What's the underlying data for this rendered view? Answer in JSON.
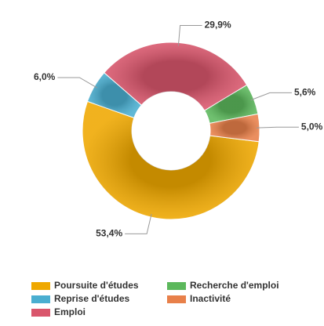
{
  "chart_data": {
    "type": "donut",
    "categories": [
      "Poursuite d'études",
      "Reprise d'études",
      "Emploi",
      "Recherche d'emploi",
      "Inactivité"
    ],
    "values": [
      53.4,
      6.0,
      29.9,
      5.6,
      5.0
    ],
    "value_labels": [
      "53,4%",
      "6,0%",
      "29,9%",
      "5,6%",
      "5,0%"
    ],
    "colors": [
      "#efa800",
      "#4aaed0",
      "#d9566c",
      "#5cb85c",
      "#e8804a"
    ],
    "legend": "bottom"
  }
}
